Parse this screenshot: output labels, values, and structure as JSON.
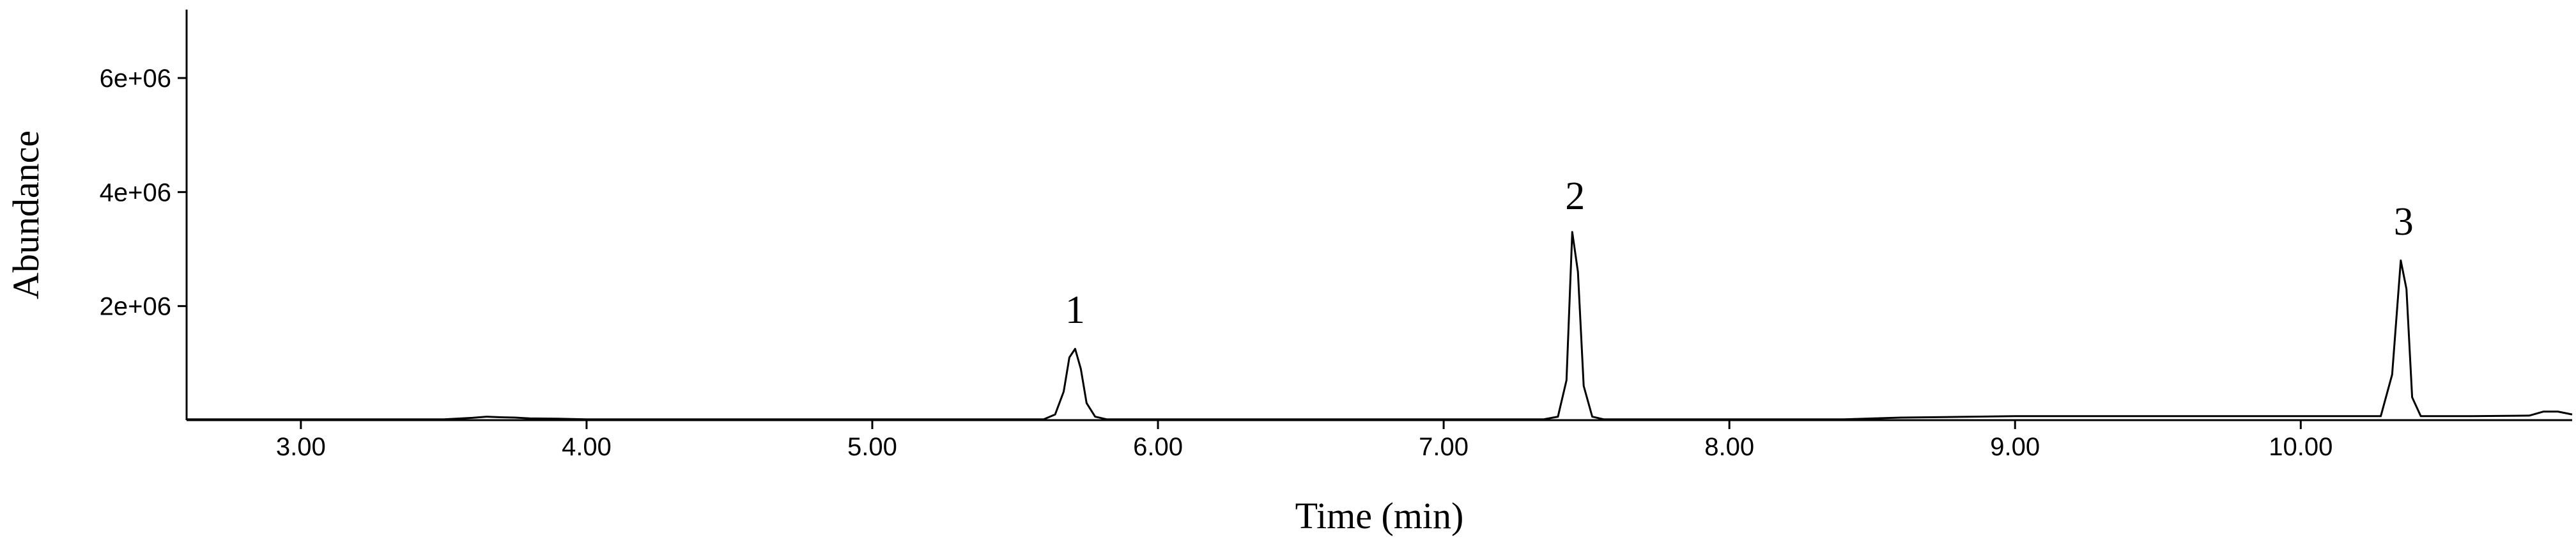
{
  "chart_data": {
    "type": "line",
    "title": "",
    "xlabel": "Time (min)",
    "ylabel": "Abundance",
    "xlim": [
      2.6,
      10.95
    ],
    "ylim": [
      0,
      7200000
    ],
    "grid": false,
    "x_ticks": [
      {
        "value": 3,
        "label": "3.00"
      },
      {
        "value": 4,
        "label": "4.00"
      },
      {
        "value": 5,
        "label": "5.00"
      },
      {
        "value": 6,
        "label": "6.00"
      },
      {
        "value": 7,
        "label": "7.00"
      },
      {
        "value": 8,
        "label": "8.00"
      },
      {
        "value": 9,
        "label": "9.00"
      },
      {
        "value": 10,
        "label": "10.00"
      }
    ],
    "y_ticks": [
      {
        "value": 2000000,
        "label": "2e+06"
      },
      {
        "value": 4000000,
        "label": "4e+06"
      },
      {
        "value": 6000000,
        "label": "6e+06"
      }
    ],
    "series": [
      {
        "color": "#000000",
        "x": [
          2.6,
          3.5,
          3.6,
          3.65,
          3.7,
          3.75,
          3.8,
          3.9,
          4.0,
          5.6,
          5.64,
          5.67,
          5.69,
          5.71,
          5.73,
          5.75,
          5.78,
          5.82,
          7.35,
          7.4,
          7.43,
          7.45,
          7.47,
          7.49,
          7.52,
          7.56,
          8.4,
          8.6,
          9.0,
          9.5,
          10.0,
          10.28,
          10.32,
          10.35,
          10.37,
          10.39,
          10.42,
          10.46,
          10.6,
          10.8,
          10.85,
          10.9,
          10.95
        ],
        "y": [
          15000,
          15000,
          40000,
          60000,
          50000,
          45000,
          30000,
          25000,
          15000,
          15000,
          100000,
          500000,
          1100000,
          1250000,
          900000,
          300000,
          60000,
          15000,
          15000,
          60000,
          700000,
          3300000,
          2600000,
          600000,
          60000,
          15000,
          15000,
          45000,
          70000,
          70000,
          70000,
          70000,
          800000,
          2800000,
          2300000,
          400000,
          70000,
          70000,
          70000,
          80000,
          150000,
          150000,
          100000
        ]
      }
    ],
    "annotations": [
      {
        "text": "1",
        "x": 5.71,
        "y": 1950000
      },
      {
        "text": "2",
        "x": 7.46,
        "y": 3950000
      },
      {
        "text": "3",
        "x": 10.36,
        "y": 3500000
      }
    ]
  }
}
